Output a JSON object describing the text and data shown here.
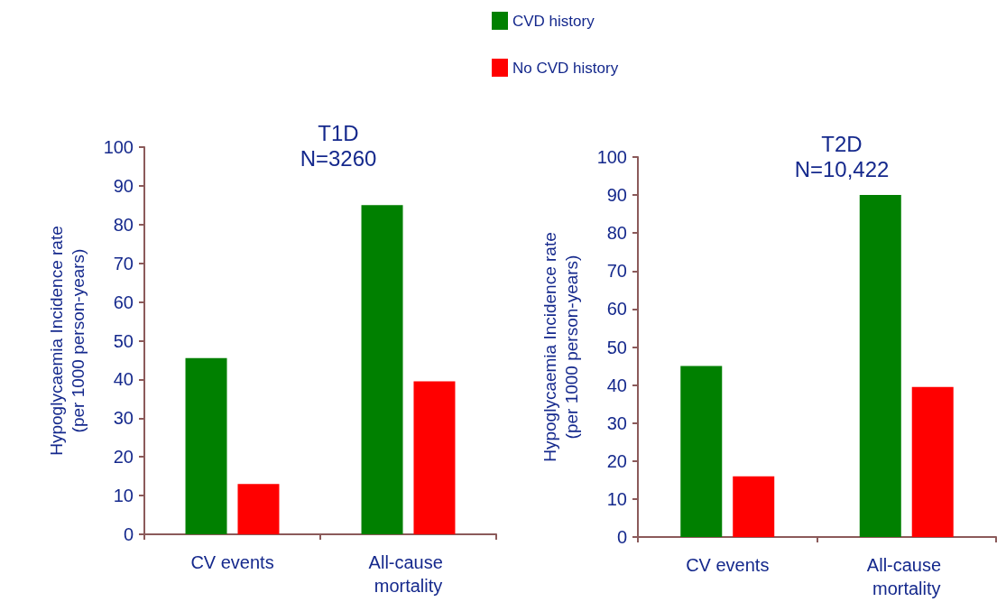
{
  "chart_data": [
    {
      "type": "bar",
      "title": "T1D\nN=3260",
      "ylabel": "Hypoglycaemia Incidence rate\n(per 1000 person-years)",
      "categories": [
        "CV events",
        "All-cause mortality"
      ],
      "series": [
        {
          "name": "CVD history",
          "color": "#008000",
          "values": [
            45.5,
            85
          ]
        },
        {
          "name": "No CVD history",
          "color": "#ff0000",
          "values": [
            13,
            39.5
          ]
        }
      ],
      "ylim": [
        0,
        100
      ],
      "yticks": [
        0,
        10,
        20,
        30,
        40,
        50,
        60,
        70,
        80,
        90,
        100
      ],
      "grid": false,
      "legend": "top"
    },
    {
      "type": "bar",
      "title": "T2D\nN=10,422",
      "ylabel": "Hypoglycaemia Incidence rate\n(per 1000 person-years)",
      "categories": [
        "CV events",
        "All-cause mortality"
      ],
      "series": [
        {
          "color": "#008000",
          "values": [
            45,
            90
          ]
        },
        {
          "color": "#ff0000",
          "values": [
            16,
            39.5
          ]
        }
      ],
      "ylim": [
        0,
        100
      ],
      "yticks": [
        0,
        10,
        20,
        30,
        40,
        50,
        60,
        70,
        80,
        90,
        100
      ],
      "grid": false
    }
  ]
}
